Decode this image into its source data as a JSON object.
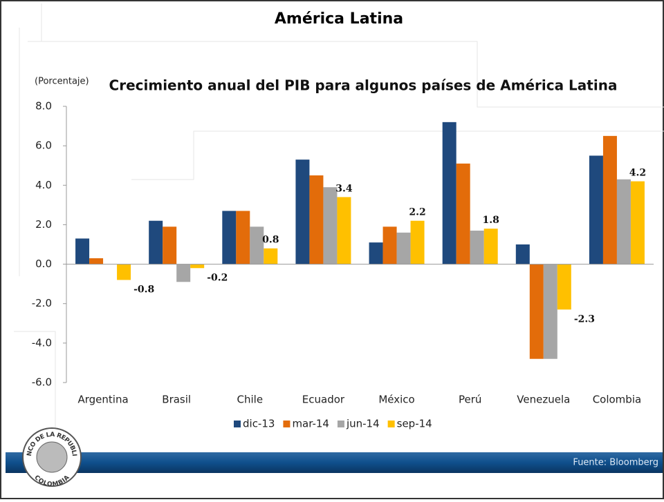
{
  "slide_title": "América Latina",
  "source": "Fuente: Bloomberg",
  "logo": {
    "top": "BANCO DE LA REPUBLICA",
    "bottom": "COLOMBIA"
  },
  "chart_data": {
    "type": "bar",
    "title": "Crecimiento anual del PIB para algunos países de América Latina",
    "y_label": "(Porcentaje)",
    "categories": [
      "Argentina",
      "Brasil",
      "Chile",
      "Ecuador",
      "México",
      "Perú",
      "Venezuela",
      "Colombia"
    ],
    "series": [
      {
        "name": "dic-13",
        "color": "#1f497d",
        "values": [
          1.3,
          2.2,
          2.7,
          5.3,
          1.1,
          7.2,
          1.0,
          5.5
        ]
      },
      {
        "name": "mar-14",
        "color": "#e36c0a",
        "values": [
          0.3,
          1.9,
          2.7,
          4.5,
          1.9,
          5.1,
          -4.8,
          6.5
        ]
      },
      {
        "name": "jun-14",
        "color": "#a6a6a6",
        "values": [
          null,
          -0.9,
          1.9,
          3.9,
          1.6,
          1.7,
          -4.8,
          4.3
        ]
      },
      {
        "name": "sep-14",
        "color": "#ffc000",
        "values": [
          -0.8,
          -0.2,
          0.8,
          3.4,
          2.2,
          1.8,
          -2.3,
          4.2
        ],
        "data_labels": true
      }
    ],
    "ylim": [
      -6,
      8
    ],
    "yticks": [
      {
        "value": -6,
        "label": "-6.0"
      },
      {
        "value": -4,
        "label": "-4.0"
      },
      {
        "value": -2,
        "label": "-2.0"
      },
      {
        "value": 0,
        "label": "0.0"
      },
      {
        "value": 2,
        "label": "2.0"
      },
      {
        "value": 4,
        "label": "4.0"
      },
      {
        "value": 6,
        "label": "6.0"
      },
      {
        "value": 8,
        "label": "8.0"
      }
    ],
    "legend": "bottom"
  }
}
